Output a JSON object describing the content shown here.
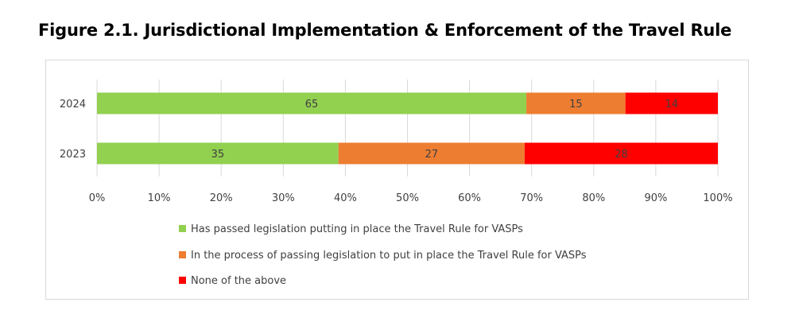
{
  "chart_data": {
    "type": "bar",
    "orientation": "horizontal",
    "stacked": "percent",
    "title": "Figure 2.1. Jurisdictional Implementation & Enforcement of the Travel Rule",
    "categories": [
      "2024",
      "2023"
    ],
    "series": [
      {
        "name": "Has passed legislation putting in place the Travel Rule for VASPs",
        "color": "#92d050",
        "values": [
          65,
          35
        ]
      },
      {
        "name": "In the process of passing legislation to put in place the Travel Rule for VASPs",
        "color": "#ed7d31",
        "values": [
          15,
          27
        ]
      },
      {
        "name": "None of the above",
        "color": "#ff0000",
        "values": [
          14,
          28
        ]
      }
    ],
    "xlim": [
      0,
      100
    ],
    "x_ticks": [
      "0%",
      "10%",
      "20%",
      "30%",
      "40%",
      "50%",
      "60%",
      "70%",
      "80%",
      "90%",
      "100%"
    ],
    "grid": true,
    "legend_position": "bottom"
  },
  "colors": {
    "grid": "#d9d9d9",
    "text": "#404040"
  }
}
